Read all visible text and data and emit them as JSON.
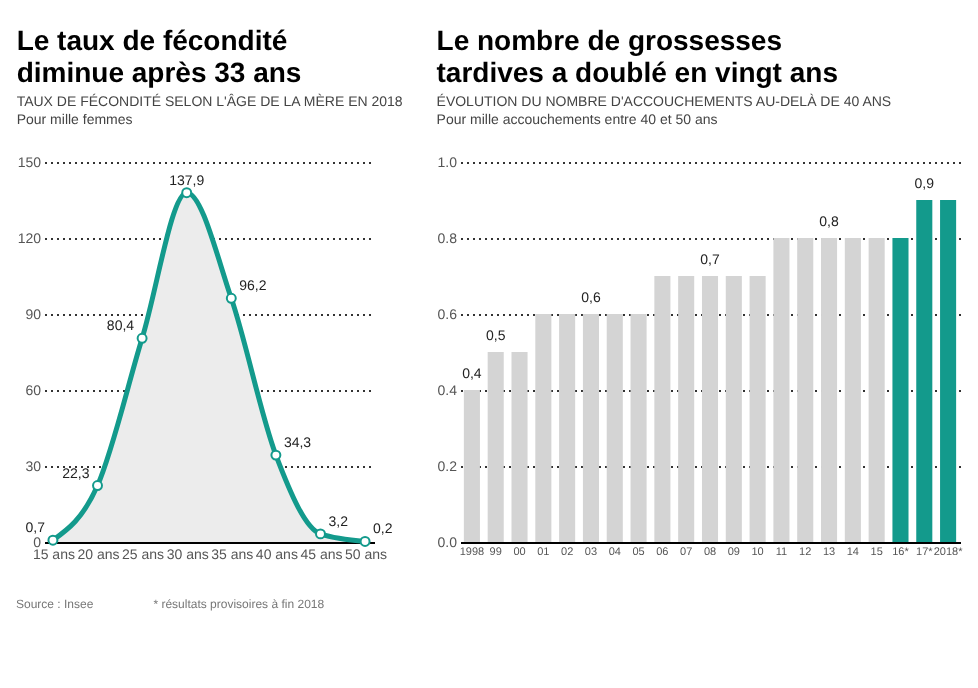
{
  "chart_data": [
    {
      "type": "area",
      "title": "Le taux de fécondité\ndiminue après 33 ans",
      "subtitle": "TAUX DE FÉCONDITÉ SELON L'ÂGE DE LA MÈRE EN 2018",
      "ylabel": "Pour mille femmes",
      "x": [
        15,
        20,
        25,
        30,
        35,
        40,
        45,
        50
      ],
      "series": [
        {
          "color": "#139a8c",
          "values": [
            0.7,
            22.3,
            80.4,
            137.9,
            96.2,
            34.3,
            3.2,
            0.2
          ],
          "value_labels": [
            "0,7",
            "22,3",
            "80,4",
            "137,9",
            "96,2",
            "34,3",
            "3,2",
            "0,2"
          ]
        }
      ],
      "xlim": [
        14,
        51
      ],
      "xticks": [
        {
          "value": 15,
          "label": "15 ans"
        },
        {
          "value": 20,
          "label": "20 ans"
        },
        {
          "value": 25,
          "label": "25 ans"
        },
        {
          "value": 30,
          "label": "30 ans"
        },
        {
          "value": 35,
          "label": "35 ans"
        },
        {
          "value": 40,
          "label": "40 ans"
        },
        {
          "value": 45,
          "label": "45 ans"
        },
        {
          "value": 50,
          "label": "50 ans"
        }
      ],
      "ylim": [
        0,
        150
      ],
      "yticks": [
        0,
        30,
        60,
        90,
        120,
        150
      ],
      "grid": "y",
      "marker": "circle",
      "annotations": [
        "Source : Insee",
        "* résultats provisoires à fin 2018"
      ]
    },
    {
      "type": "bar",
      "title": "Le nombre de grossesses\ntardives a doublé en vingt ans",
      "subtitle": "ÉVOLUTION DU NOMBRE D'ACCOUCHEMENTS AU-DELÀ DE 40 ANS",
      "ylabel": "Pour mille accouchements entre 40 et 50 ans",
      "categories": [
        "1998",
        "99",
        "00",
        "01",
        "02",
        "03",
        "04",
        "05",
        "06",
        "07",
        "08",
        "09",
        "10",
        "11",
        "12",
        "13",
        "14",
        "15",
        "16*",
        "17*",
        "2018*"
      ],
      "values": [
        0.4,
        0.5,
        0.5,
        0.6,
        0.6,
        0.6,
        0.6,
        0.6,
        0.7,
        0.7,
        0.7,
        0.7,
        0.7,
        0.8,
        0.8,
        0.8,
        0.8,
        0.8,
        0.8,
        0.9,
        0.9
      ],
      "colors": [
        "#d4d4d4",
        "#d4d4d4",
        "#d4d4d4",
        "#d4d4d4",
        "#d4d4d4",
        "#d4d4d4",
        "#d4d4d4",
        "#d4d4d4",
        "#d4d4d4",
        "#d4d4d4",
        "#d4d4d4",
        "#d4d4d4",
        "#d4d4d4",
        "#d4d4d4",
        "#d4d4d4",
        "#d4d4d4",
        "#d4d4d4",
        "#d4d4d4",
        "#139a8c",
        "#139a8c",
        "#139a8c"
      ],
      "value_labels": [
        "0,4",
        "0,5",
        null,
        null,
        null,
        "0,6",
        null,
        null,
        null,
        null,
        "0,7",
        null,
        null,
        null,
        null,
        "0,8",
        null,
        null,
        null,
        "0,9",
        null
      ],
      "ylim": [
        0,
        1
      ],
      "yticks": [
        {
          "value": 0,
          "label": "0.0"
        },
        {
          "value": 0.2,
          "label": "0.2"
        },
        {
          "value": 0.4,
          "label": "0.4"
        },
        {
          "value": 0.6,
          "label": "0.6"
        },
        {
          "value": 0.8,
          "label": "0.8"
        },
        {
          "value": 1,
          "label": "1.0"
        }
      ],
      "grid": "y"
    }
  ]
}
